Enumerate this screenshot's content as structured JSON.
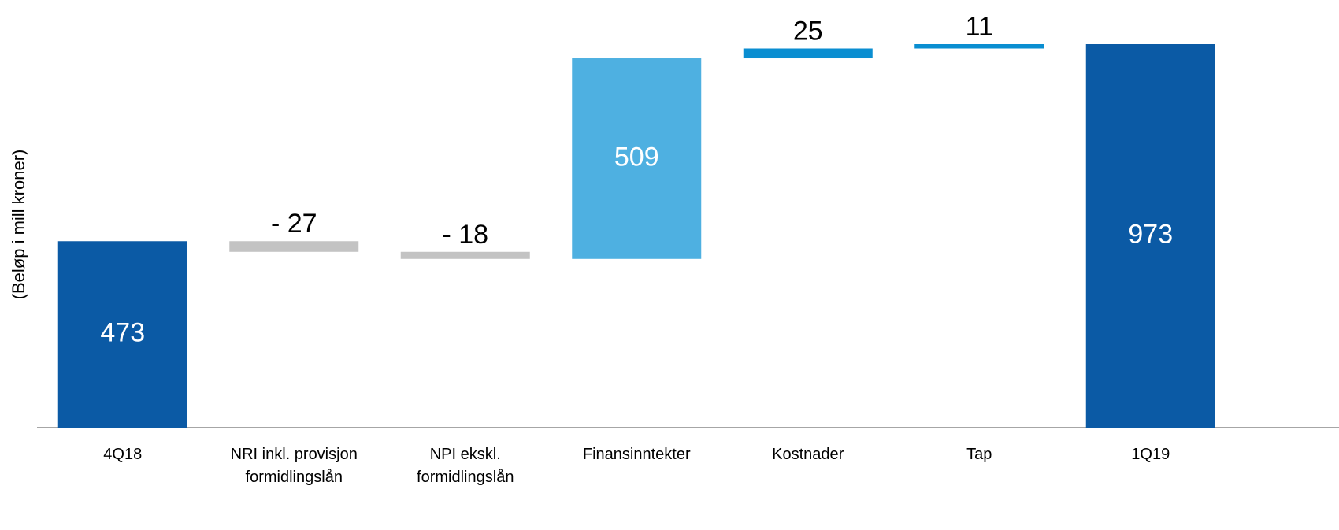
{
  "chart_data": {
    "type": "waterfall",
    "y_label": "(Beløp i mill kroner)",
    "categories": [
      "4Q18",
      "NRI inkl. provisjon formidlingslån",
      "NPI ekskl. formidlingslån",
      "Finansinntekter",
      "Kostnader",
      "Tap",
      "1Q19"
    ],
    "values": [
      473,
      -27,
      -18,
      509,
      25,
      11,
      973
    ],
    "value_labels": [
      "473",
      "- 27",
      "- 18",
      "509",
      "25",
      "11",
      "973"
    ],
    "is_total": [
      true,
      false,
      false,
      false,
      false,
      false,
      true
    ],
    "colors": [
      "#0b5aa5",
      "#c3c3c3",
      "#c3c3c3",
      "#4eb0e1",
      "#0a8ed1",
      "#0a8ed1",
      "#0b5aa5"
    ]
  }
}
